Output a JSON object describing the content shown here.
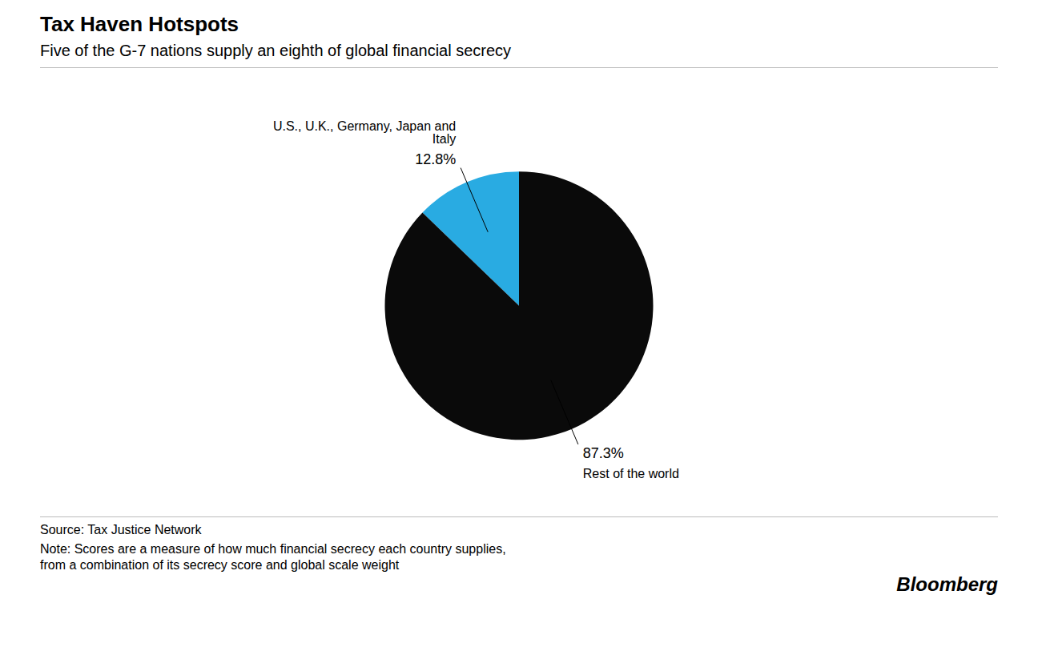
{
  "chart_data": {
    "type": "pie",
    "title": "Tax Haven Hotspots",
    "subtitle": "Five of the G-7 nations supply an eighth of global financial secrecy",
    "categories": [
      "U.S., U.K., Germany, Japan and\nItaly",
      "Rest of the world"
    ],
    "values": [
      12.8,
      87.3
    ],
    "value_labels": [
      "12.8%",
      "87.3%"
    ],
    "colors": [
      "#29ABE2",
      "#0a0a0a"
    ],
    "data_labels": true,
    "source": "Source: Tax Justice Network",
    "note": "Note: Scores are a measure of how much financial secrecy each country supplies,\nfrom a combination of its secrecy score and global scale weight",
    "credit": "Bloomberg"
  }
}
